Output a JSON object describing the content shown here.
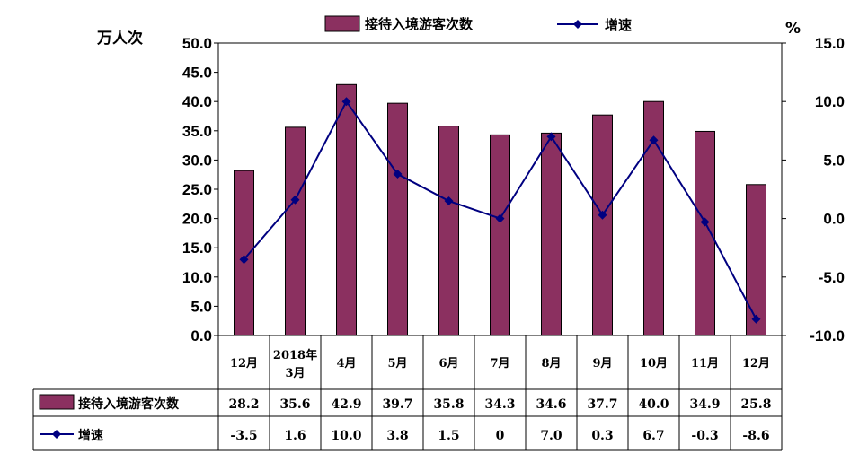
{
  "chart_data": {
    "type": "bar",
    "y_left_label": "万人次",
    "y_right_label": "%",
    "y_left_lim": [
      0,
      50
    ],
    "y_left_ticks": [
      "0.0",
      "5.0",
      "10.0",
      "15.0",
      "20.0",
      "25.0",
      "30.0",
      "35.0",
      "40.0",
      "45.0",
      "50.0"
    ],
    "y_right_lim": [
      -10,
      15
    ],
    "y_right_ticks": [
      "-10.0",
      "-5.0",
      "0.0",
      "5.0",
      "10.0",
      "15.0"
    ],
    "categories": [
      "12月",
      "2018年\n3月",
      "4月",
      "5月",
      "6月",
      "7月",
      "8月",
      "9月",
      "10月",
      "11月",
      "12月"
    ],
    "series": [
      {
        "name": "接待入境游客次数",
        "kind": "bar",
        "axis": "left",
        "color": "#8B3060",
        "values": [
          28.2,
          35.6,
          42.9,
          39.7,
          35.8,
          34.3,
          34.6,
          37.7,
          40.0,
          34.9,
          25.8
        ],
        "labels": [
          "28.2",
          "35.6",
          "42.9",
          "39.7",
          "35.8",
          "34.3",
          "34.6",
          "37.7",
          "40.0",
          "34.9",
          "25.8"
        ]
      },
      {
        "name": "增速",
        "kind": "line",
        "axis": "right",
        "color": "#000080",
        "values": [
          -3.5,
          1.6,
          10.0,
          3.8,
          1.5,
          0,
          7.0,
          0.3,
          6.7,
          -0.3,
          -8.6
        ],
        "labels": [
          "-3.5",
          "1.6",
          "10.0",
          "3.8",
          "1.5",
          "0",
          "7.0",
          "0.3",
          "6.7",
          "-0.3",
          "-8.6"
        ]
      }
    ],
    "legend_position": "top",
    "grid": false
  }
}
